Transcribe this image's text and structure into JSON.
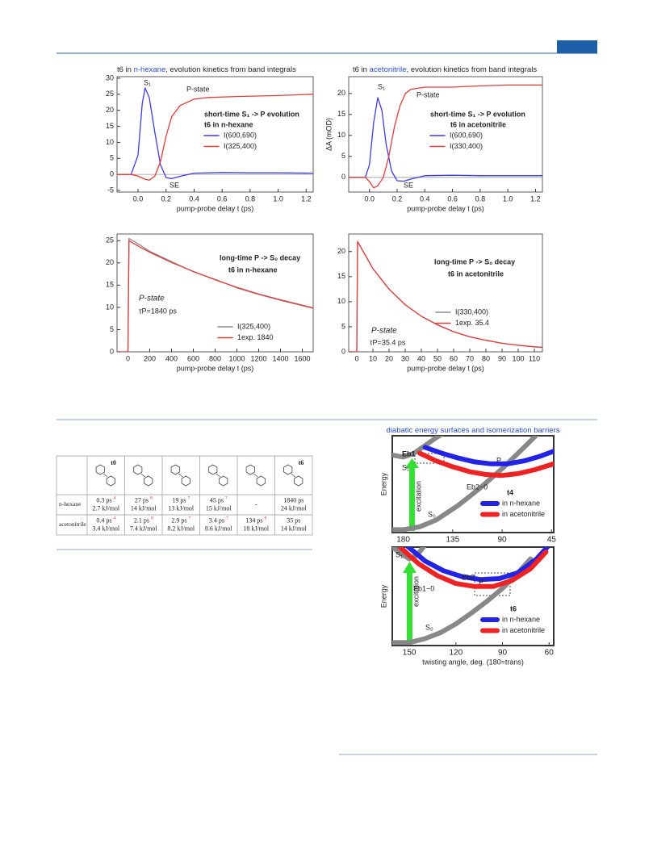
{
  "chart_data": [
    {
      "type": "line",
      "title": [
        "t6 in ",
        "n-hexane",
        ", evolution kinetics  from band integrals"
      ],
      "xlabel": "pump-probe delay t (ps)",
      "xlim": [
        -0.15,
        1.25
      ],
      "xticks": [
        {
          "value": 0,
          "label": "0.0"
        },
        0.2,
        0.4,
        0.6,
        0.8,
        {
          "value": 1,
          "label": "1.0"
        },
        1.2
      ],
      "ylim": [
        -5.5,
        30.5
      ],
      "yticks": [
        -5,
        0,
        5,
        10,
        15,
        20,
        25,
        30
      ],
      "series": [
        {
          "name": "I(600,690)",
          "color": "#3b3bef",
          "x": [
            -0.15,
            -0.05,
            0,
            0.03,
            0.05,
            0.08,
            0.12,
            0.16,
            0.2,
            0.24,
            0.3,
            0.4,
            0.6,
            0.8,
            1.0,
            1.25
          ],
          "values": [
            0,
            0,
            6,
            22,
            27,
            24,
            13,
            3,
            -1,
            -1.3,
            -0.6,
            0.4,
            0.6,
            0.5,
            0.5,
            0.4
          ]
        },
        {
          "name": "I(325,400)",
          "color": "#e63b3b",
          "x": [
            -0.15,
            -0.05,
            0,
            0.05,
            0.08,
            0.12,
            0.16,
            0.2,
            0.24,
            0.3,
            0.4,
            0.5,
            0.7,
            1.0,
            1.25
          ],
          "values": [
            0,
            0,
            -0.5,
            -1.5,
            -1.8,
            -0.5,
            4,
            12,
            18,
            21.5,
            23.5,
            24,
            24.3,
            24.6,
            25
          ]
        }
      ],
      "annotations": [
        {
          "text": "S₁",
          "color": "#222"
        },
        {
          "text": "P-state",
          "color": "#222"
        },
        {
          "text": "SE",
          "color": "#222"
        },
        {
          "text": "short-time S₁ -> P evolution",
          "color": "#3b3bef"
        },
        {
          "text": "t6 in n-hexane",
          "color": "#222"
        }
      ]
    },
    {
      "type": "line",
      "title": [
        "t6 in ",
        "acetonitrile",
        ", evolution kinetics from band integrals"
      ],
      "xlabel": "pump-probe delay t (ps)",
      "ylabel": "ΔA (mOD)",
      "xlim": [
        -0.15,
        1.25
      ],
      "xticks": [
        {
          "value": 0,
          "label": "0.0"
        },
        0.2,
        0.4,
        0.6,
        0.8,
        {
          "value": 1,
          "label": "1.0"
        },
        1.2
      ],
      "ylim": [
        -3.5,
        24
      ],
      "yticks": [
        0,
        5,
        10,
        15,
        20
      ],
      "series": [
        {
          "name": "I(600,690)",
          "color": "#3b3bef",
          "x": [
            -0.15,
            -0.03,
            0,
            0.03,
            0.06,
            0.09,
            0.12,
            0.16,
            0.2,
            0.25,
            0.3,
            0.4,
            0.6,
            0.8,
            1.0,
            1.25
          ],
          "values": [
            0,
            0,
            3,
            13,
            19,
            16,
            8,
            1.5,
            -0.8,
            -0.9,
            -0.4,
            0.4,
            0.5,
            0.4,
            0.4,
            0.4
          ]
        },
        {
          "name": "I(330,400)",
          "color": "#e63b3b",
          "x": [
            -0.15,
            -0.03,
            0,
            0.03,
            0.06,
            0.1,
            0.14,
            0.18,
            0.22,
            0.26,
            0.3,
            0.4,
            0.6,
            0.8,
            1.0,
            1.25
          ],
          "values": [
            0,
            0,
            -1,
            -2.5,
            -2,
            0,
            5,
            12,
            17,
            20,
            21,
            21.5,
            21.5,
            21.8,
            22,
            22
          ]
        }
      ],
      "annotations": [
        {
          "text": "S₁",
          "color": "#222"
        },
        {
          "text": "P-state",
          "color": "#222"
        },
        {
          "text": "SE",
          "color": "#222"
        },
        {
          "text": "short-time S₁ -> P evolution",
          "color": "#3b3bef"
        },
        {
          "text": "t6 in acetonitrile",
          "color": "#222"
        }
      ]
    },
    {
      "type": "line",
      "xlabel": "pump-probe delay t (ps)",
      "xlim": [
        -100,
        1700
      ],
      "xticks": [
        0,
        200,
        400,
        600,
        800,
        1000,
        1200,
        1400,
        1600
      ],
      "ylim": [
        0,
        26.5
      ],
      "yticks": [
        0,
        5,
        10,
        15,
        20,
        25
      ],
      "series": [
        {
          "name": "I(325,400)",
          "color": "#8a8a8a",
          "x": [
            -100,
            0,
            10,
            100,
            200,
            400,
            600,
            800,
            1000,
            1200,
            1400,
            1700
          ],
          "values": [
            0,
            0,
            25.5,
            24.2,
            22.6,
            20.3,
            18.0,
            16.3,
            14.4,
            12.9,
            11.6,
            9.8
          ]
        },
        {
          "name": "1exp. 1840",
          "color": "#e63b3b",
          "x": [
            -100,
            0,
            10,
            100,
            200,
            400,
            600,
            800,
            1000,
            1200,
            1400,
            1700
          ],
          "values": [
            0,
            0,
            25,
            23.7,
            22.4,
            20.1,
            18.1,
            16.2,
            14.5,
            13.0,
            11.7,
            9.9
          ]
        }
      ],
      "annotations": [
        {
          "text": "long-time P -> S₀ decay",
          "color": "#3b3bef"
        },
        {
          "text": "t6 in n-hexane",
          "color": "#222"
        },
        {
          "text": "P-state",
          "color": "#e63b3b"
        },
        {
          "text": "τP=1840 ps",
          "color": "#222"
        }
      ]
    },
    {
      "type": "line",
      "xlabel": "pump-probe delay t (ps)",
      "xlim": [
        -5,
        115
      ],
      "xticks": [
        0,
        10,
        20,
        30,
        40,
        50,
        60,
        70,
        80,
        90,
        100,
        110
      ],
      "ylim": [
        0,
        23.5
      ],
      "yticks": [
        0,
        5,
        10,
        15,
        20
      ],
      "series": [
        {
          "name": "I(330,400)",
          "color": "#8a8a8a",
          "x": [
            -5,
            0,
            0.5,
            10,
            20,
            30,
            40,
            50,
            60,
            70,
            80,
            90,
            100,
            110,
            115
          ],
          "values": [
            0,
            0,
            22,
            16.6,
            12.5,
            9.4,
            7.1,
            5.4,
            4.0,
            3.0,
            2.3,
            1.7,
            1.3,
            1.0,
            0.9
          ]
        },
        {
          "name": "1exp. 35.4",
          "color": "#e63b3b",
          "x": [
            -5,
            0,
            0.5,
            10,
            20,
            30,
            40,
            50,
            60,
            70,
            80,
            90,
            100,
            110,
            115
          ],
          "values": [
            0,
            0,
            22,
            16.6,
            12.5,
            9.4,
            7.1,
            5.4,
            4.0,
            3.0,
            2.3,
            1.7,
            1.3,
            1.0,
            0.9
          ]
        }
      ],
      "annotations": [
        {
          "text": "long-time P -> S₀ decay",
          "color": "#3b3bef"
        },
        {
          "text": "t6 in acetonitrile",
          "color": "#222"
        },
        {
          "text": "P-state",
          "color": "#e63b3b"
        },
        {
          "text": "τP=35.4 ps",
          "color": "#222"
        }
      ]
    },
    {
      "type": "line",
      "title": [
        "diabatic energy surfaces and isomerization barriers"
      ],
      "ylabel": "Energy",
      "xlim": [
        190,
        43
      ],
      "xticks": [
        180,
        135,
        90,
        45
      ],
      "ylim": [
        0,
        1
      ],
      "series": [
        {
          "color": "#888888",
          "x": [
            190,
            180,
            165,
            150,
            130,
            110,
            90,
            70,
            55
          ],
          "values": [
            0.03,
            0.03,
            0.06,
            0.13,
            0.28,
            0.46,
            0.66,
            0.88,
            1.05
          ]
        },
        {
          "color": "#888888",
          "x": [
            190,
            180,
            170,
            160,
            150,
            140
          ],
          "values": [
            0.8,
            0.78,
            0.82,
            0.9,
            0.98,
            1.05
          ]
        },
        {
          "name": "in n-hexane",
          "color": "#2323e6",
          "x": [
            160,
            145,
            130,
            115,
            100,
            85,
            70,
            55,
            43
          ],
          "values": [
            0.88,
            0.82,
            0.77,
            0.73,
            0.71,
            0.71,
            0.74,
            0.79,
            0.84
          ]
        },
        {
          "name": "in acetonitrile",
          "color": "#ee2222",
          "x": [
            165,
            150,
            135,
            120,
            105,
            90,
            75,
            60,
            43
          ],
          "values": [
            0.82,
            0.74,
            0.68,
            0.63,
            0.6,
            0.59,
            0.61,
            0.65,
            0.71
          ]
        }
      ],
      "annotations": [
        {
          "text": "Eb1",
          "color": "#222"
        },
        {
          "text": "S₁",
          "color": "#222"
        },
        {
          "text": "P",
          "color": "#222"
        },
        {
          "text": "Eb2~0",
          "color": "#222"
        },
        {
          "text": "t4",
          "color": "#222"
        },
        {
          "text": "S₀",
          "color": "#222"
        },
        {
          "text": "excitation",
          "color": "#222"
        }
      ]
    },
    {
      "type": "line",
      "ylabel": "Energy",
      "xlabel": "twisting angle, deg. (180=trans)",
      "xlim": [
        161,
        57
      ],
      "xticks": [
        150,
        120,
        90,
        60
      ],
      "ylim": [
        0,
        1
      ],
      "series": [
        {
          "color": "#888888",
          "x": [
            161,
            150,
            140,
            130,
            120,
            110,
            100,
            90,
            80,
            72
          ],
          "values": [
            0.03,
            0.03,
            0.07,
            0.13,
            0.22,
            0.33,
            0.45,
            0.58,
            0.74,
            0.88
          ]
        },
        {
          "color": "#888888",
          "x": [
            161,
            155,
            150,
            145,
            140
          ],
          "values": [
            1.0,
            0.93,
            0.88,
            0.92,
            1.02
          ]
        },
        {
          "name": "in n-hexane",
          "color": "#2323e6",
          "x": [
            152,
            140,
            128,
            116,
            104,
            92,
            80,
            68,
            60
          ],
          "values": [
            1.02,
            0.86,
            0.76,
            0.7,
            0.67,
            0.68,
            0.74,
            0.88,
            1.02
          ]
        },
        {
          "name": "in acetonitrile",
          "color": "#ee2222",
          "x": [
            156,
            144,
            132,
            120,
            108,
            96,
            84,
            72,
            62
          ],
          "values": [
            1.0,
            0.83,
            0.71,
            0.63,
            0.6,
            0.6,
            0.66,
            0.78,
            0.95
          ]
        }
      ],
      "annotations": [
        {
          "text": "S₁",
          "color": "#222"
        },
        {
          "text": "Eb2",
          "color": "#222"
        },
        {
          "text": "P",
          "color": "#222"
        },
        {
          "text": "Eb1~0",
          "color": "#222"
        },
        {
          "text": "t6",
          "color": "#222"
        },
        {
          "text": "S₀",
          "color": "#222"
        },
        {
          "text": "excitation",
          "color": "#222"
        }
      ]
    }
  ],
  "table": {
    "columns": [
      "t0",
      null,
      null,
      null,
      null,
      "t6"
    ],
    "rows": [
      {
        "solvent": "n-hexane",
        "cells": [
          {
            "time": "0.3 ps",
            "ref": "4",
            "energy": "2.7 kJ/mol"
          },
          {
            "time": "27 ps",
            "ref": "8",
            "energy": "14 kJ/mol"
          },
          {
            "time": "19 ps",
            "ref": "7",
            "energy": "13 kJ/mol"
          },
          {
            "time": "45 ps",
            "ref": "7",
            "energy": "15 kJ/mol"
          },
          {
            "time": "-"
          },
          {
            "time": "1840 ps",
            "energy": "24 kJ/mol"
          }
        ]
      },
      {
        "solvent": "acetonitrile",
        "cells": [
          {
            "time": "0.4 ps",
            "ref": "4",
            "energy": "3.4 kJ/mol"
          },
          {
            "time": "2.1 ps",
            "ref": "8",
            "energy": "7.4 kJ/mol"
          },
          {
            "time": "2.9 ps",
            "ref": "7",
            "energy": "8.2 kJ/mol"
          },
          {
            "time": "3.4 ps",
            "ref": "7",
            "energy": "8.6 kJ/mol"
          },
          {
            "time": "134 ps",
            "ref": "8",
            "energy": "18 kJ/mol"
          },
          {
            "time": "35 ps",
            "energy": "14 kJ/mol"
          }
        ]
      }
    ]
  }
}
